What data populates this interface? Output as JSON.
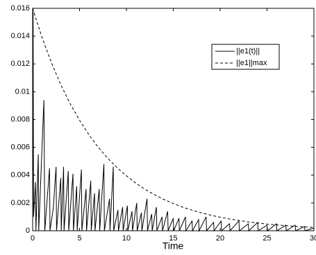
{
  "chart_data": {
    "type": "line",
    "xlabel": "Time",
    "xlim": [
      0,
      30
    ],
    "xticks": [
      0,
      5,
      10,
      15,
      20,
      25,
      30
    ],
    "ylim": [
      0,
      0.016
    ],
    "yticks": [
      0,
      0.002,
      0.004,
      0.006,
      0.008,
      0.01,
      0.012,
      0.014,
      0.016
    ],
    "legend": "upper right",
    "series": [
      {
        "name": "||e1(t)||",
        "color": "#000000",
        "linestyle": "solid",
        "x": [
          0,
          0.05,
          0.1,
          0.3,
          0.35,
          0.6,
          0.65,
          1.2,
          1.3,
          1.8,
          1.85,
          2.2,
          2.5,
          2.55,
          3.0,
          3.05,
          3.3,
          3.35,
          3.8,
          3.85,
          4.3,
          4.35,
          4.7,
          4.75,
          5.2,
          5.25,
          5.7,
          5.75,
          6.2,
          6.25,
          6.6,
          6.65,
          7.1,
          7.15,
          7.6,
          7.65,
          8.2,
          8.25,
          8.6,
          8.65,
          9.1,
          9.15,
          9.6,
          9.65,
          10.1,
          10.15,
          10.6,
          10.65,
          11.1,
          11.15,
          11.6,
          11.65,
          12.2,
          12.25,
          12.7,
          12.75,
          13.2,
          13.25,
          13.8,
          13.85,
          14.4,
          14.45,
          15.0,
          15.05,
          15.6,
          15.65,
          16.3,
          16.35,
          17.0,
          17.05,
          17.7,
          17.75,
          18.5,
          18.55,
          19.3,
          19.35,
          20.1,
          20.15,
          21,
          21.05,
          22,
          22.05,
          23,
          23.05,
          24,
          24.05,
          25,
          25.05,
          26,
          26.05,
          27,
          27.05,
          28,
          28.05,
          29,
          29.05,
          30
        ],
        "values": [
          0,
          0.0158,
          0.001,
          0.0035,
          0,
          0.0055,
          0,
          0.0094,
          0,
          0.0045,
          0,
          0.0016,
          0.0046,
          0,
          0.0038,
          0,
          0.0046,
          0,
          0.0043,
          0,
          0.0041,
          0,
          0.0032,
          0,
          0.0044,
          0,
          0.003,
          0,
          0.0036,
          0,
          0.0027,
          0,
          0.003,
          0,
          0.0048,
          0,
          0.0023,
          0,
          0.0046,
          0,
          0.0015,
          0,
          0.0017,
          0,
          0.0018,
          0,
          0.0014,
          0,
          0.002,
          0,
          0.0013,
          0,
          0.0023,
          0,
          0.0012,
          0,
          0.0017,
          0,
          0.001,
          0,
          0.0014,
          0,
          0.0009,
          0,
          0.0009,
          0,
          0.001,
          0,
          0.0007,
          0,
          0.0008,
          0,
          0.001,
          0,
          0.0006,
          0,
          0.0007,
          0,
          0.0005,
          0,
          0.0007,
          0,
          0.0005,
          0,
          0.0006,
          0,
          0.0004,
          0,
          0.0005,
          0,
          0.0004,
          0,
          0.0004,
          0,
          0.0003,
          0,
          0.0002
        ]
      },
      {
        "name": "||e1||max",
        "color": "#000000",
        "linestyle": "dashed",
        "x": [
          0,
          1,
          2,
          3,
          4,
          5,
          6,
          7,
          8,
          9,
          10,
          11,
          12,
          13,
          14,
          15,
          16,
          17,
          18,
          19,
          20,
          21,
          22,
          23,
          24,
          25,
          26,
          27,
          28,
          29,
          30
        ],
        "values": [
          0.016,
          0.01391,
          0.01209,
          0.01051,
          0.00914,
          0.00795,
          0.00691,
          0.006,
          0.00522,
          0.00454,
          0.00395,
          0.00343,
          0.00298,
          0.00259,
          0.00225,
          0.00196,
          0.0017,
          0.00148,
          0.00129,
          0.00112,
          0.00097,
          0.00085,
          0.00074,
          0.00064,
          0.00056,
          0.00048,
          0.00042,
          0.00037,
          0.00032,
          0.00028,
          0.00024
        ]
      }
    ]
  }
}
